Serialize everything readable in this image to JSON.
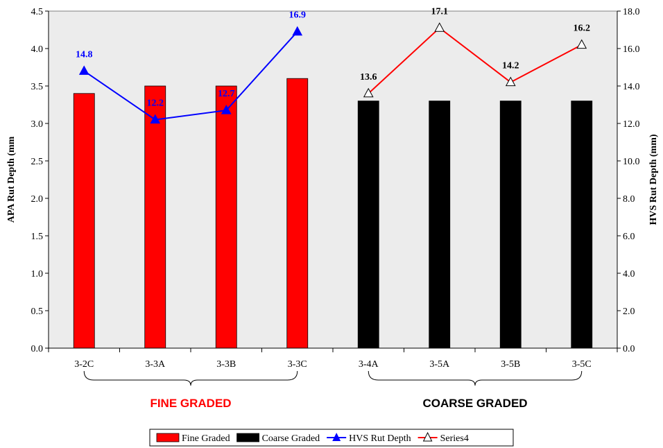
{
  "chart_data": {
    "type": "bar",
    "categories": [
      "3-2C",
      "3-3A",
      "3-3B",
      "3-3C",
      "3-4A",
      "3-5A",
      "3-5B",
      "3-5C"
    ],
    "ylabel": "APA Rut Depth (mm",
    "y2label": "HVS Rut Depth (mm)",
    "ylim": [
      0,
      4.5
    ],
    "y2lim": [
      0,
      18
    ],
    "yticks": [
      "0.0",
      "0.5",
      "1.0",
      "1.5",
      "2.0",
      "2.5",
      "3.0",
      "3.5",
      "4.0",
      "4.5"
    ],
    "y2ticks": [
      "0.0",
      "2.0",
      "4.0",
      "6.0",
      "8.0",
      "10.0",
      "12.0",
      "14.0",
      "16.0",
      "18.0"
    ],
    "grid": false,
    "legend_position": "bottom",
    "series": [
      {
        "name": "Fine Graded",
        "kind": "bar",
        "axis": "left",
        "color": "#ff0000",
        "values": [
          3.4,
          3.5,
          3.5,
          3.6,
          null,
          null,
          null,
          null
        ]
      },
      {
        "name": "Coarse Graded",
        "kind": "bar",
        "axis": "left",
        "color": "#000000",
        "values": [
          null,
          null,
          null,
          null,
          3.3,
          3.3,
          3.3,
          3.3
        ]
      },
      {
        "name": "HVS Rut Depth",
        "kind": "line",
        "axis": "right",
        "color": "#0000ff",
        "marker": "filled-triangle",
        "values": [
          14.8,
          12.2,
          12.7,
          16.9,
          null,
          null,
          null,
          null
        ],
        "labels": [
          "14.8",
          "12.2",
          "12.7",
          "16.9",
          null,
          null,
          null,
          null
        ]
      },
      {
        "name": "Series4",
        "kind": "line",
        "axis": "right",
        "color": "#ff0000",
        "marker": "open-triangle",
        "label_color": "#000000",
        "values": [
          null,
          null,
          null,
          null,
          13.6,
          17.1,
          14.2,
          16.2
        ],
        "labels": [
          null,
          null,
          null,
          null,
          "13.6",
          "17.1",
          "14.2",
          "16.2"
        ]
      }
    ],
    "groups": [
      {
        "label": "FINE GRADED",
        "from": 0,
        "to": 3,
        "color": "#ff0000"
      },
      {
        "label": "COARSE GRADED",
        "from": 4,
        "to": 7,
        "color": "#000000"
      }
    ],
    "plot_background": "#ececec"
  }
}
